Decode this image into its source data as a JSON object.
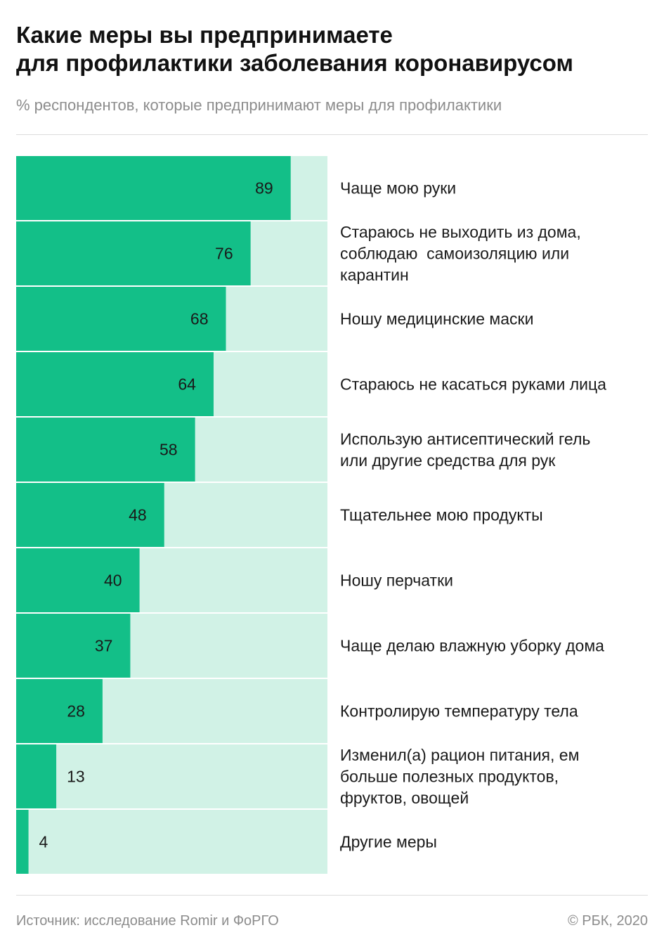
{
  "header": {
    "title_line1": "Какие меры вы предпринимаете",
    "title_line2": "для профилактики заболевания коронавирусом",
    "subtitle": "% респондентов, которые предпринимают меры для профилактики"
  },
  "footer": {
    "source": "Источник: исследование Romir и ФоРГО",
    "copyright": "© РБК, 2020"
  },
  "colors": {
    "bar": "#13bf88",
    "track": "#d1f2e6",
    "label": "#1a1a1a"
  },
  "chart_data": {
    "type": "bar",
    "orientation": "horizontal",
    "xlim": [
      0,
      100
    ],
    "categories": [
      [
        "Чаще мою руки"
      ],
      [
        "Стараюсь не выходить из дома,",
        "соблюдаю  самоизоляцию или",
        "карантин"
      ],
      [
        "Ношу медицинские маски"
      ],
      [
        "Стараюсь не касаться руками лица"
      ],
      [
        "Использую антисептический гель",
        "или другие средства для рук"
      ],
      [
        "Тщательнее мою продукты"
      ],
      [
        "Ношу перчатки"
      ],
      [
        "Чаще делаю влажную уборку дома"
      ],
      [
        "Контролирую температуру тела"
      ],
      [
        "Изменил(а) рацион питания, ем",
        "больше полезных продуктов,",
        "фруктов, овощей"
      ],
      [
        "Другие меры"
      ]
    ],
    "values": [
      89,
      76,
      68,
      64,
      58,
      48,
      40,
      37,
      28,
      13,
      4
    ]
  }
}
